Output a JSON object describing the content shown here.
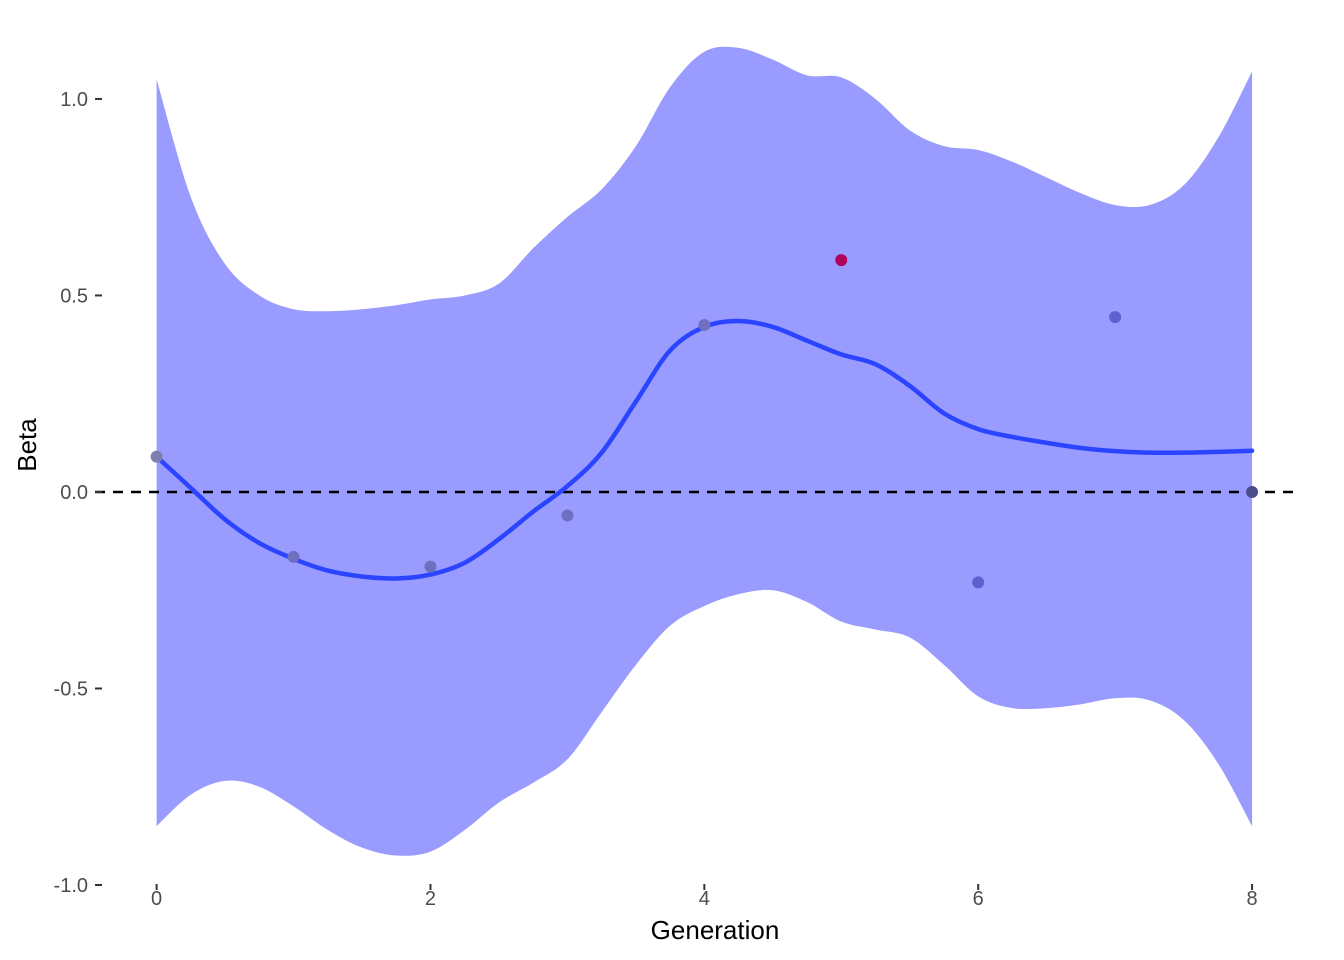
{
  "chart_data": {
    "type": "scatter",
    "xlabel": "Generation",
    "ylabel": "Beta",
    "xlim": [
      -0.45,
      8.35
    ],
    "ylim": [
      -1.0,
      1.15
    ],
    "x_ticks": [
      0,
      2,
      4,
      6,
      8
    ],
    "x_tick_labels": [
      "0",
      "2",
      "4",
      "6",
      "8"
    ],
    "y_ticks": [
      -1.0,
      -0.5,
      0.0,
      0.5,
      1.0
    ],
    "y_tick_labels": [
      "-1.0",
      "-0.5",
      "0.0",
      "0.5",
      "1.0"
    ],
    "grid": false,
    "reference_line": {
      "y": 0.0,
      "style": "dashed",
      "color": "#000000"
    },
    "points": {
      "x": [
        0,
        1,
        2,
        3,
        4,
        5,
        6,
        7,
        8
      ],
      "y": [
        0.09,
        -0.165,
        -0.19,
        -0.06,
        0.425,
        0.59,
        -0.23,
        0.445,
        0.0
      ],
      "colors": [
        "#7f7faf",
        "#6f6fbf",
        "#6f6fbf",
        "#6f6fbf",
        "#6f6fbf",
        "#b0005a",
        "#5f5fcf",
        "#5f5fcf",
        "#4c4c8c"
      ]
    },
    "smooth_line": {
      "color": "#2a44ff",
      "x": [
        0,
        0.25,
        0.5,
        0.75,
        1.0,
        1.25,
        1.5,
        1.75,
        2.0,
        2.25,
        2.5,
        2.75,
        3.0,
        3.25,
        3.5,
        3.75,
        4.0,
        4.25,
        4.5,
        4.75,
        5.0,
        5.25,
        5.5,
        5.75,
        6.0,
        6.25,
        6.5,
        6.75,
        7.0,
        7.25,
        7.5,
        7.75,
        8.0
      ],
      "y": [
        0.09,
        0.01,
        -0.07,
        -0.13,
        -0.17,
        -0.2,
        -0.215,
        -0.22,
        -0.21,
        -0.18,
        -0.12,
        -0.05,
        0.015,
        0.1,
        0.23,
        0.36,
        0.42,
        0.435,
        0.42,
        0.385,
        0.35,
        0.325,
        0.27,
        0.2,
        0.16,
        0.14,
        0.125,
        0.112,
        0.104,
        0.1,
        0.1,
        0.102,
        0.105
      ]
    },
    "confidence_band": {
      "color": "#999bff",
      "x": [
        0,
        0.25,
        0.5,
        0.75,
        1.0,
        1.25,
        1.5,
        1.75,
        2.0,
        2.25,
        2.5,
        2.75,
        3.0,
        3.25,
        3.5,
        3.75,
        4.0,
        4.25,
        4.5,
        4.75,
        5.0,
        5.25,
        5.5,
        5.75,
        6.0,
        6.25,
        6.5,
        6.75,
        7.0,
        7.25,
        7.5,
        7.75,
        8.0
      ],
      "upper": [
        1.05,
        0.75,
        0.58,
        0.5,
        0.465,
        0.46,
        0.465,
        0.475,
        0.49,
        0.5,
        0.53,
        0.62,
        0.7,
        0.77,
        0.88,
        1.03,
        1.12,
        1.13,
        1.1,
        1.06,
        1.055,
        1.0,
        0.92,
        0.88,
        0.87,
        0.84,
        0.8,
        0.76,
        0.73,
        0.73,
        0.78,
        0.9,
        1.07
      ],
      "lower": [
        -0.85,
        -0.77,
        -0.735,
        -0.75,
        -0.8,
        -0.86,
        -0.905,
        -0.925,
        -0.915,
        -0.86,
        -0.79,
        -0.74,
        -0.68,
        -0.56,
        -0.44,
        -0.34,
        -0.29,
        -0.26,
        -0.25,
        -0.28,
        -0.33,
        -0.35,
        -0.37,
        -0.44,
        -0.52,
        -0.55,
        -0.55,
        -0.54,
        -0.525,
        -0.53,
        -0.58,
        -0.69,
        -0.85
      ]
    }
  }
}
